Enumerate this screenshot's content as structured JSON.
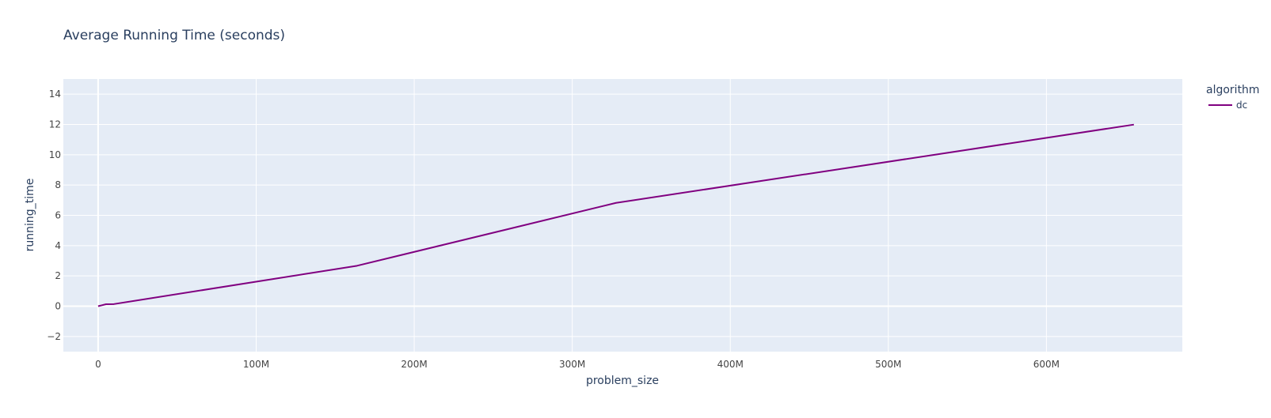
{
  "chart_data": {
    "type": "line",
    "title": "Average Running Time (seconds)",
    "xlabel": "problem_size",
    "ylabel": "running_time",
    "xlim": [
      -22000000,
      686000000
    ],
    "ylim": [
      -3,
      15
    ],
    "x_ticks": [
      0,
      100000000,
      200000000,
      300000000,
      400000000,
      500000000,
      600000000
    ],
    "x_tick_labels": [
      "0",
      "100M",
      "200M",
      "300M",
      "400M",
      "500M",
      "600M"
    ],
    "y_ticks": [
      -2,
      0,
      2,
      4,
      6,
      8,
      10,
      12,
      14
    ],
    "y_tick_labels": [
      "−2",
      "0",
      "2",
      "4",
      "6",
      "8",
      "10",
      "12",
      "14"
    ],
    "grid": true,
    "legend": {
      "title": "algorithm",
      "position": "top-right"
    },
    "series": [
      {
        "name": "dc",
        "color": "#800080",
        "x": [
          10000,
          5000000,
          10000000,
          163840000,
          327680000,
          655360000
        ],
        "y": [
          0.0,
          0.13,
          0.14,
          2.67,
          6.82,
          11.99
        ]
      }
    ]
  },
  "colors": {
    "plot_background": "#e5ecf6",
    "grid": "#ffffff",
    "text": "#2a3f5f",
    "tick_text": "#444444"
  }
}
